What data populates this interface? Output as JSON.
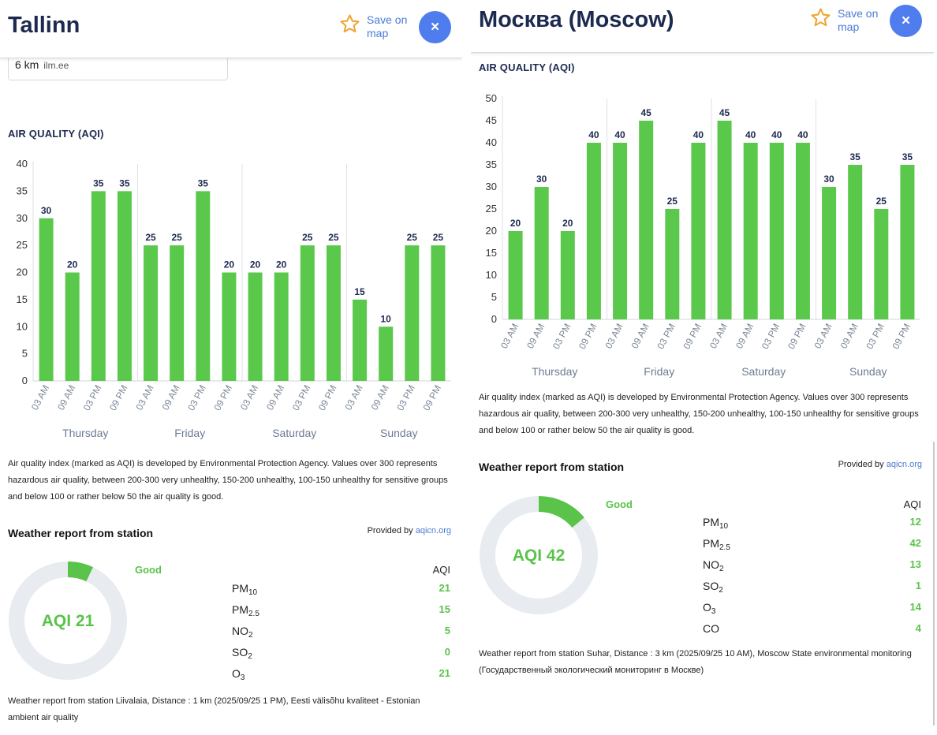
{
  "left": {
    "city": "Tallinn",
    "save_label": "Save on map",
    "close_label": "×",
    "distance_value": "6 km",
    "distance_source": "ilm.ee",
    "aqi_section_title": "AIR QUALITY (AQI)",
    "chart_data": {
      "type": "bar",
      "categories": [
        "03 AM",
        "09 AM",
        "03 PM",
        "09 PM",
        "03 AM",
        "09 AM",
        "03 PM",
        "09 PM",
        "03 AM",
        "09 AM",
        "03 PM",
        "09 PM",
        "03 AM",
        "09 AM",
        "03 PM",
        "09 PM"
      ],
      "day_groups": [
        "Thursday",
        "Friday",
        "Saturday",
        "Sunday"
      ],
      "values": [
        30,
        20,
        35,
        35,
        25,
        25,
        35,
        20,
        20,
        20,
        25,
        25,
        15,
        10,
        25,
        25
      ],
      "ylim": [
        0,
        40
      ],
      "yticks": [
        0,
        5,
        10,
        15,
        20,
        25,
        30,
        35,
        40
      ],
      "bar_color": "#5ac94b",
      "data_labels": true
    },
    "description": "Air quality index (marked as AQI) is developed by Environmental Protection Agency. Values over 300 represents hazardous air quality, between 200-300 very unhealthy, 150-200 unhealthy, 100-150 unhealthy for sensitive groups and below 100 or rather below 50 the air quality is good.",
    "weather_title": "Weather report from station",
    "provided_by": "Provided by",
    "provider_link": "aqicn.org",
    "aqi_text": "AQI 21",
    "aqi_value": 21,
    "status": "Good",
    "aqi_col_header": "AQI",
    "pollutants": [
      {
        "base": "PM",
        "sub": "10",
        "value": "21"
      },
      {
        "base": "PM",
        "sub": "2.5",
        "value": "15"
      },
      {
        "base": "NO",
        "sub": "2",
        "value": "5"
      },
      {
        "base": "SO",
        "sub": "2",
        "value": "0"
      },
      {
        "base": "O",
        "sub": "3",
        "value": "21"
      }
    ],
    "station_text": "Weather report from station Liivalaia, Distance : 1 km (2025/09/25 1 PM), Eesti välisõhu kvaliteet - Estonian ambient air quality"
  },
  "right": {
    "city": "Москва (Moscow)",
    "save_label": "Save on map",
    "close_label": "×",
    "aqi_section_title": "AIR QUALITY (AQI)",
    "chart_data": {
      "type": "bar",
      "categories": [
        "03 AM",
        "09 AM",
        "03 PM",
        "09 PM",
        "03 AM",
        "09 AM",
        "03 PM",
        "09 PM",
        "03 AM",
        "09 AM",
        "03 PM",
        "09 PM",
        "03 AM",
        "09 AM",
        "03 PM",
        "09 PM"
      ],
      "day_groups": [
        "Thursday",
        "Friday",
        "Saturday",
        "Sunday"
      ],
      "values": [
        20,
        30,
        20,
        40,
        40,
        45,
        25,
        40,
        45,
        40,
        40,
        40,
        30,
        35,
        25,
        35
      ],
      "ylim": [
        0,
        50
      ],
      "yticks": [
        0,
        5,
        10,
        15,
        20,
        25,
        30,
        35,
        40,
        45,
        50
      ],
      "bar_color": "#5ac94b",
      "data_labels": true
    },
    "description": "Air quality index (marked as AQI) is developed by Environmental Protection Agency. Values over 300 represents hazardous air quality, between 200-300 very unhealthy, 150-200 unhealthy, 100-150 unhealthy for sensitive groups and below 100 or rather below 50 the air quality is good.",
    "weather_title": "Weather report from station",
    "provided_by": "Provided by",
    "provider_link": "aqicn.org",
    "aqi_text": "AQI 42",
    "aqi_value": 42,
    "status": "Good",
    "aqi_col_header": "AQI",
    "pollutants": [
      {
        "base": "PM",
        "sub": "10",
        "value": "12"
      },
      {
        "base": "PM",
        "sub": "2.5",
        "value": "42"
      },
      {
        "base": "NO",
        "sub": "2",
        "value": "13"
      },
      {
        "base": "SO",
        "sub": "2",
        "value": "1"
      },
      {
        "base": "O",
        "sub": "3",
        "value": "14"
      },
      {
        "base": "CO",
        "sub": "",
        "value": "4"
      }
    ],
    "station_text": "Weather report from station Suhar, Distance : 3 km (2025/09/25 10 AM), Moscow State environmental monitoring (Государственный экологический мониторинг в Москве)"
  },
  "colors": {
    "accent_blue": "#4f7ded",
    "link_blue": "#4a7bd6",
    "good_green": "#5ac34a",
    "star_orange": "#f0a430",
    "title_navy": "#1d2a4f",
    "donut_track": "#e8ebef"
  },
  "icons": [
    "star-icon",
    "close-icon"
  ]
}
